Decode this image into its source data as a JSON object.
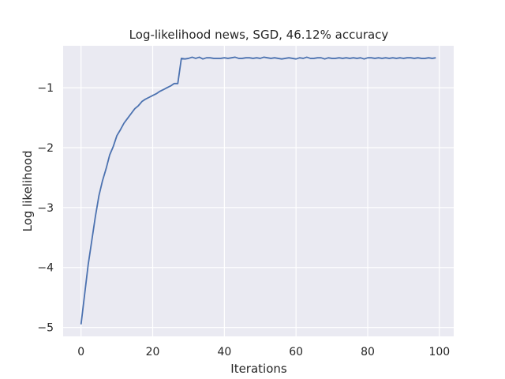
{
  "chart_data": {
    "type": "line",
    "title": "Log-likelihood news, SGD, 46.12% accuracy",
    "xlabel": "Iterations",
    "ylabel": "Log likelihood",
    "xlim": [
      -5,
      104
    ],
    "ylim": [
      -5.15,
      -0.3
    ],
    "x_ticks": [
      0,
      20,
      40,
      60,
      80,
      100
    ],
    "x_tick_labels": [
      "0",
      "20",
      "40",
      "60",
      "80",
      "100"
    ],
    "y_ticks": [
      -5,
      -4,
      -3,
      -2,
      -1
    ],
    "y_tick_labels": [
      "−5",
      "−4",
      "−3",
      "−2",
      "−1"
    ],
    "grid": true,
    "line_color": "#4c72b0",
    "background_color": "#eaeaf2",
    "grid_color": "#ffffff",
    "series": [
      {
        "x": [
          0,
          1,
          2,
          3,
          4,
          5,
          6,
          7,
          8,
          9,
          10,
          11,
          12,
          13,
          14,
          15,
          16,
          17,
          18,
          19,
          20,
          21,
          22,
          23,
          24,
          25,
          26,
          27,
          28,
          29,
          30,
          31,
          32,
          33,
          34,
          35,
          36,
          37,
          38,
          39,
          40,
          41,
          42,
          43,
          44,
          45,
          46,
          47,
          48,
          49,
          50,
          51,
          52,
          53,
          54,
          55,
          56,
          57,
          58,
          59,
          60,
          61,
          62,
          63,
          64,
          65,
          66,
          67,
          68,
          69,
          70,
          71,
          72,
          73,
          74,
          75,
          76,
          77,
          78,
          79,
          80,
          81,
          82,
          83,
          84,
          85,
          86,
          87,
          88,
          89,
          90,
          91,
          92,
          93,
          94,
          95,
          96,
          97,
          98,
          99
        ],
        "values": [
          -4.95,
          -4.45,
          -3.95,
          -3.55,
          -3.15,
          -2.8,
          -2.55,
          -2.35,
          -2.12,
          -1.98,
          -1.8,
          -1.7,
          -1.59,
          -1.51,
          -1.43,
          -1.35,
          -1.3,
          -1.23,
          -1.19,
          -1.16,
          -1.13,
          -1.1,
          -1.06,
          -1.03,
          -1.0,
          -0.97,
          -0.93,
          -0.93,
          -0.51,
          -0.52,
          -0.51,
          -0.49,
          -0.51,
          -0.49,
          -0.52,
          -0.5,
          -0.5,
          -0.51,
          -0.51,
          -0.51,
          -0.5,
          -0.51,
          -0.5,
          -0.49,
          -0.51,
          -0.51,
          -0.5,
          -0.5,
          -0.51,
          -0.5,
          -0.51,
          -0.49,
          -0.5,
          -0.51,
          -0.5,
          -0.51,
          -0.52,
          -0.51,
          -0.5,
          -0.51,
          -0.52,
          -0.5,
          -0.51,
          -0.49,
          -0.51,
          -0.51,
          -0.5,
          -0.5,
          -0.52,
          -0.5,
          -0.51,
          -0.51,
          -0.5,
          -0.51,
          -0.5,
          -0.51,
          -0.5,
          -0.51,
          -0.5,
          -0.52,
          -0.5,
          -0.5,
          -0.51,
          -0.5,
          -0.51,
          -0.5,
          -0.51,
          -0.5,
          -0.51,
          -0.5,
          -0.51,
          -0.5,
          -0.5,
          -0.51,
          -0.5,
          -0.51,
          -0.51,
          -0.5,
          -0.51,
          -0.5
        ]
      }
    ]
  }
}
